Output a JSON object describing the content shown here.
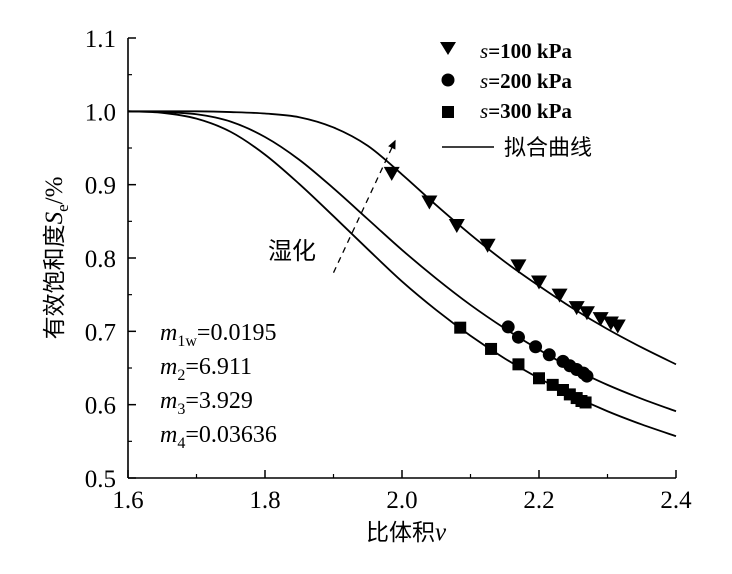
{
  "chart_data": {
    "type": "scatter",
    "title": "",
    "xlabel_text": "比体积",
    "xlabel_var": "v",
    "ylabel_text": "有效饱和度",
    "ylabel_var": "S",
    "ylabel_sub": "e",
    "ylabel_unit": "/%",
    "xlim": [
      1.6,
      2.4
    ],
    "ylim": [
      0.5,
      1.1
    ],
    "x_ticks": [
      "1.6",
      "1.8",
      "2.0",
      "2.2",
      "2.4"
    ],
    "y_ticks": [
      "0.5",
      "0.6",
      "0.7",
      "0.8",
      "0.9",
      "1.0",
      "1.1"
    ],
    "series": [
      {
        "name_var": "s",
        "name_rest": "=100 kPa",
        "marker": "triangle-down",
        "points": [
          [
            1.985,
            0.916
          ],
          [
            2.04,
            0.877
          ],
          [
            2.08,
            0.845
          ],
          [
            2.125,
            0.818
          ],
          [
            2.17,
            0.79
          ],
          [
            2.2,
            0.768
          ],
          [
            2.23,
            0.75
          ],
          [
            2.255,
            0.733
          ],
          [
            2.27,
            0.726
          ],
          [
            2.29,
            0.718
          ],
          [
            2.305,
            0.712
          ],
          [
            2.315,
            0.708
          ]
        ],
        "fit_v": [
          1.6,
          1.65,
          1.7,
          1.75,
          1.8,
          1.85,
          1.9,
          1.95,
          2.0,
          2.05,
          2.1,
          2.15,
          2.2,
          2.25,
          2.3,
          2.35,
          2.4
        ],
        "fit_se": [
          1.0,
          1.0,
          1.0,
          0.999,
          0.997,
          0.992,
          0.978,
          0.953,
          0.914,
          0.872,
          0.832,
          0.795,
          0.762,
          0.731,
          0.703,
          0.678,
          0.655
        ]
      },
      {
        "name_var": "s",
        "name_rest": "=200 kPa",
        "marker": "circle",
        "points": [
          [
            2.155,
            0.706
          ],
          [
            2.17,
            0.692
          ],
          [
            2.195,
            0.679
          ],
          [
            2.215,
            0.668
          ],
          [
            2.235,
            0.659
          ],
          [
            2.245,
            0.653
          ],
          [
            2.255,
            0.648
          ],
          [
            2.265,
            0.643
          ],
          [
            2.27,
            0.639
          ]
        ],
        "fit_v": [
          1.6,
          1.65,
          1.7,
          1.75,
          1.8,
          1.85,
          1.9,
          1.95,
          2.0,
          2.05,
          2.1,
          2.15,
          2.2,
          2.25,
          2.3,
          2.35,
          2.4
        ],
        "fit_se": [
          1.0,
          0.999,
          0.996,
          0.986,
          0.965,
          0.934,
          0.895,
          0.853,
          0.811,
          0.772,
          0.736,
          0.704,
          0.675,
          0.649,
          0.627,
          0.608,
          0.591
        ]
      },
      {
        "name_var": "s",
        "name_rest": "=300 kPa",
        "marker": "square",
        "points": [
          [
            2.085,
            0.705
          ],
          [
            2.13,
            0.676
          ],
          [
            2.17,
            0.655
          ],
          [
            2.2,
            0.636
          ],
          [
            2.22,
            0.627
          ],
          [
            2.235,
            0.62
          ],
          [
            2.245,
            0.614
          ],
          [
            2.255,
            0.609
          ],
          [
            2.262,
            0.605
          ],
          [
            2.268,
            0.603
          ]
        ],
        "fit_v": [
          1.6,
          1.65,
          1.7,
          1.75,
          1.8,
          1.85,
          1.9,
          1.95,
          2.0,
          2.05,
          2.1,
          2.15,
          2.2,
          2.25,
          2.3,
          2.35,
          2.4
        ],
        "fit_se": [
          1.0,
          0.998,
          0.99,
          0.972,
          0.941,
          0.901,
          0.857,
          0.812,
          0.768,
          0.729,
          0.694,
          0.663,
          0.636,
          0.612,
          0.591,
          0.573,
          0.557
        ]
      }
    ],
    "legend": {
      "placement": "top-right",
      "fit_label": "拟合曲线"
    },
    "annotation": {
      "text": "湿化",
      "arrow_from": [
        1.9,
        0.78
      ],
      "arrow_to": [
        1.99,
        0.96
      ]
    },
    "params": [
      {
        "var": "m",
        "sub": "1w",
        "value": "=0.0195"
      },
      {
        "var": "m",
        "sub": "2",
        "value": "=6.911"
      },
      {
        "var": "m",
        "sub": "3",
        "value": "=3.929"
      },
      {
        "var": "m",
        "sub": "4",
        "value": "=0.03636"
      }
    ]
  }
}
